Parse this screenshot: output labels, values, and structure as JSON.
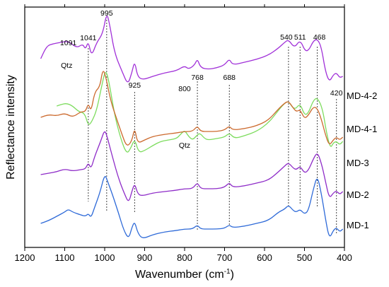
{
  "chart_data": {
    "type": "line",
    "xlabel": "Wavenumber (cm",
    "xlabel_superscript": "-1",
    "xlabel_suffix": ")",
    "ylabel": "Reflectance intensity",
    "xlim": [
      1200,
      400
    ],
    "x_reversed": true,
    "x_ticks": [
      "1200",
      "1100",
      "1000",
      "900",
      "800",
      "700",
      "600",
      "500",
      "400"
    ],
    "y_ticks_shown": false,
    "grid": false,
    "legend": "none (series labeled at right end of each curve)",
    "series": [
      {
        "name": "MD-4-2",
        "color": "#a030d8",
        "points": [
          [
            1160,
            0.75
          ],
          [
            1145,
            0.93
          ],
          [
            1130,
            0.96
          ],
          [
            1110,
            0.98
          ],
          [
            1091,
            1.0
          ],
          [
            1070,
            0.9
          ],
          [
            1055,
            0.96
          ],
          [
            1048,
            0.88
          ],
          [
            1041,
            1.0
          ],
          [
            1033,
            0.78
          ],
          [
            1020,
            0.98
          ],
          [
            1005,
            1.1
          ],
          [
            995,
            1.4
          ],
          [
            988,
            1.25
          ],
          [
            975,
            0.82
          ],
          [
            955,
            0.55
          ],
          [
            942,
            0.38
          ],
          [
            932,
            0.55
          ],
          [
            925,
            0.72
          ],
          [
            918,
            0.5
          ],
          [
            905,
            0.45
          ],
          [
            880,
            0.5
          ],
          [
            850,
            0.55
          ],
          [
            820,
            0.58
          ],
          [
            800,
            0.65
          ],
          [
            790,
            0.6
          ],
          [
            775,
            0.66
          ],
          [
            768,
            0.75
          ],
          [
            760,
            0.62
          ],
          [
            740,
            0.6
          ],
          [
            720,
            0.62
          ],
          [
            700,
            0.66
          ],
          [
            688,
            0.75
          ],
          [
            680,
            0.66
          ],
          [
            650,
            0.7
          ],
          [
            620,
            0.74
          ],
          [
            590,
            0.8
          ],
          [
            565,
            0.9
          ],
          [
            550,
            0.98
          ],
          [
            540,
            1.02
          ],
          [
            525,
            0.9
          ],
          [
            511,
            1.02
          ],
          [
            498,
            0.85
          ],
          [
            488,
            0.88
          ],
          [
            478,
            1.0
          ],
          [
            468,
            1.03
          ],
          [
            458,
            0.92
          ],
          [
            448,
            0.58
          ],
          [
            438,
            0.42
          ],
          [
            428,
            0.52
          ],
          [
            420,
            0.55
          ],
          [
            412,
            0.48
          ],
          [
            404,
            0.5
          ]
        ]
      },
      {
        "name": "MD-4-1",
        "color": "#7ddc5e",
        "points": [
          [
            1120,
            0.68
          ],
          [
            1110,
            0.7
          ],
          [
            1095,
            0.72
          ],
          [
            1080,
            0.68
          ],
          [
            1065,
            0.6
          ],
          [
            1050,
            0.58
          ],
          [
            1041,
            0.4
          ],
          [
            1032,
            0.46
          ],
          [
            1020,
            0.62
          ],
          [
            1008,
            0.95
          ],
          [
            998,
            1.2
          ],
          [
            990,
            1.05
          ],
          [
            975,
            0.55
          ],
          [
            960,
            0.22
          ],
          [
            945,
            0.0
          ],
          [
            935,
            0.08
          ],
          [
            925,
            0.22
          ],
          [
            915,
            0.02
          ],
          [
            900,
            0.05
          ],
          [
            880,
            0.12
          ],
          [
            860,
            0.18
          ],
          [
            840,
            0.2
          ],
          [
            820,
            0.22
          ],
          [
            810,
            0.28
          ],
          [
            800,
            0.34
          ],
          [
            790,
            0.25
          ],
          [
            780,
            0.2
          ],
          [
            770,
            0.26
          ],
          [
            762,
            0.3
          ],
          [
            750,
            0.22
          ],
          [
            740,
            0.2
          ],
          [
            720,
            0.22
          ],
          [
            700,
            0.24
          ],
          [
            688,
            0.3
          ],
          [
            675,
            0.22
          ],
          [
            650,
            0.26
          ],
          [
            620,
            0.32
          ],
          [
            590,
            0.44
          ],
          [
            565,
            0.62
          ],
          [
            550,
            0.72
          ],
          [
            540,
            0.75
          ],
          [
            525,
            0.62
          ],
          [
            511,
            0.72
          ],
          [
            500,
            0.55
          ],
          [
            490,
            0.58
          ],
          [
            478,
            0.76
          ],
          [
            468,
            0.8
          ],
          [
            455,
            0.65
          ],
          [
            445,
            0.3
          ],
          [
            435,
            0.08
          ],
          [
            428,
            0.16
          ],
          [
            420,
            0.18
          ],
          [
            412,
            0.13
          ],
          [
            404,
            0.18
          ]
        ]
      },
      {
        "name": "MD-3",
        "color": "#cc6a2e",
        "points": [
          [
            1160,
            0.62
          ],
          [
            1140,
            0.66
          ],
          [
            1120,
            0.64
          ],
          [
            1100,
            0.68
          ],
          [
            1080,
            0.62
          ],
          [
            1060,
            0.7
          ],
          [
            1048,
            0.7
          ],
          [
            1041,
            0.82
          ],
          [
            1034,
            0.7
          ],
          [
            1025,
            0.98
          ],
          [
            1012,
            1.05
          ],
          [
            1005,
            1.3
          ],
          [
            998,
            1.22
          ],
          [
            985,
            0.85
          ],
          [
            970,
            0.6
          ],
          [
            958,
            0.4
          ],
          [
            945,
            0.2
          ],
          [
            932,
            0.28
          ],
          [
            925,
            0.48
          ],
          [
            918,
            0.25
          ],
          [
            900,
            0.3
          ],
          [
            880,
            0.35
          ],
          [
            850,
            0.38
          ],
          [
            820,
            0.4
          ],
          [
            800,
            0.42
          ],
          [
            780,
            0.42
          ],
          [
            768,
            0.5
          ],
          [
            760,
            0.42
          ],
          [
            740,
            0.42
          ],
          [
            720,
            0.42
          ],
          [
            700,
            0.44
          ],
          [
            688,
            0.5
          ],
          [
            680,
            0.44
          ],
          [
            650,
            0.46
          ],
          [
            620,
            0.5
          ],
          [
            590,
            0.58
          ],
          [
            565,
            0.74
          ],
          [
            550,
            0.82
          ],
          [
            540,
            0.85
          ],
          [
            528,
            0.75
          ],
          [
            520,
            0.7
          ],
          [
            511,
            0.73
          ],
          [
            500,
            0.6
          ],
          [
            490,
            0.65
          ],
          [
            478,
            0.77
          ],
          [
            468,
            0.75
          ],
          [
            458,
            0.6
          ],
          [
            448,
            0.38
          ],
          [
            438,
            0.22
          ],
          [
            428,
            0.3
          ],
          [
            420,
            0.34
          ],
          [
            412,
            0.3
          ],
          [
            404,
            0.34
          ]
        ]
      },
      {
        "name": "MD-2",
        "color": "#8e2cc8",
        "points": [
          [
            1160,
            0.38
          ],
          [
            1140,
            0.4
          ],
          [
            1120,
            0.42
          ],
          [
            1100,
            0.46
          ],
          [
            1080,
            0.43
          ],
          [
            1060,
            0.45
          ],
          [
            1048,
            0.46
          ],
          [
            1041,
            0.55
          ],
          [
            1034,
            0.46
          ],
          [
            1025,
            0.64
          ],
          [
            1010,
            0.85
          ],
          [
            1000,
            1.02
          ],
          [
            993,
            0.9
          ],
          [
            980,
            0.62
          ],
          [
            965,
            0.32
          ],
          [
            950,
            0.1
          ],
          [
            940,
            -0.02
          ],
          [
            932,
            0.14
          ],
          [
            925,
            0.26
          ],
          [
            917,
            0.1
          ],
          [
            905,
            0.08
          ],
          [
            880,
            0.12
          ],
          [
            850,
            0.14
          ],
          [
            820,
            0.16
          ],
          [
            800,
            0.18
          ],
          [
            780,
            0.18
          ],
          [
            768,
            0.27
          ],
          [
            760,
            0.18
          ],
          [
            740,
            0.18
          ],
          [
            720,
            0.18
          ],
          [
            700,
            0.2
          ],
          [
            688,
            0.27
          ],
          [
            680,
            0.2
          ],
          [
            650,
            0.22
          ],
          [
            620,
            0.26
          ],
          [
            590,
            0.3
          ],
          [
            565,
            0.42
          ],
          [
            550,
            0.5
          ],
          [
            540,
            0.55
          ],
          [
            528,
            0.47
          ],
          [
            520,
            0.45
          ],
          [
            511,
            0.5
          ],
          [
            500,
            0.4
          ],
          [
            490,
            0.44
          ],
          [
            478,
            0.6
          ],
          [
            468,
            0.7
          ],
          [
            458,
            0.55
          ],
          [
            448,
            0.3
          ],
          [
            438,
            0.04
          ],
          [
            428,
            0.12
          ],
          [
            420,
            0.15
          ],
          [
            412,
            0.1
          ],
          [
            404,
            0.14
          ]
        ]
      },
      {
        "name": "MD-1",
        "color": "#2e6ad8",
        "points": [
          [
            1160,
            0.02
          ],
          [
            1140,
            0.06
          ],
          [
            1120,
            0.12
          ],
          [
            1100,
            0.18
          ],
          [
            1091,
            0.22
          ],
          [
            1080,
            0.18
          ],
          [
            1060,
            0.14
          ],
          [
            1048,
            0.12
          ],
          [
            1041,
            0.16
          ],
          [
            1034,
            0.1
          ],
          [
            1025,
            0.25
          ],
          [
            1012,
            0.45
          ],
          [
            1000,
            0.72
          ],
          [
            993,
            0.62
          ],
          [
            980,
            0.42
          ],
          [
            965,
            0.16
          ],
          [
            952,
            -0.08
          ],
          [
            940,
            -0.2
          ],
          [
            932,
            -0.04
          ],
          [
            925,
            0.05
          ],
          [
            917,
            -0.12
          ],
          [
            905,
            -0.2
          ],
          [
            880,
            -0.14
          ],
          [
            850,
            -0.1
          ],
          [
            820,
            -0.08
          ],
          [
            800,
            -0.06
          ],
          [
            780,
            -0.06
          ],
          [
            768,
            0.0
          ],
          [
            760,
            -0.06
          ],
          [
            740,
            -0.06
          ],
          [
            720,
            -0.06
          ],
          [
            700,
            -0.05
          ],
          [
            688,
            0.0
          ],
          [
            680,
            -0.04
          ],
          [
            650,
            -0.02
          ],
          [
            620,
            0.02
          ],
          [
            590,
            0.06
          ],
          [
            565,
            0.18
          ],
          [
            550,
            0.22
          ],
          [
            540,
            0.28
          ],
          [
            528,
            0.2
          ],
          [
            520,
            0.18
          ],
          [
            511,
            0.22
          ],
          [
            500,
            0.15
          ],
          [
            490,
            0.2
          ],
          [
            478,
            0.5
          ],
          [
            468,
            0.7
          ],
          [
            458,
            0.45
          ],
          [
            448,
            0.1
          ],
          [
            438,
            -0.2
          ],
          [
            428,
            -0.08
          ],
          [
            420,
            -0.04
          ],
          [
            412,
            -0.1
          ],
          [
            404,
            -0.06
          ]
        ]
      }
    ],
    "annotations": {
      "peaks": [
        "1091",
        "1041",
        "995",
        "925",
        "800",
        "768",
        "688",
        "540",
        "511",
        "468",
        "420"
      ],
      "mineral_labels": [
        "Qtz",
        "Qtz"
      ]
    }
  },
  "colors": {
    "axis": "#000000",
    "dotted_line": "#444444"
  }
}
